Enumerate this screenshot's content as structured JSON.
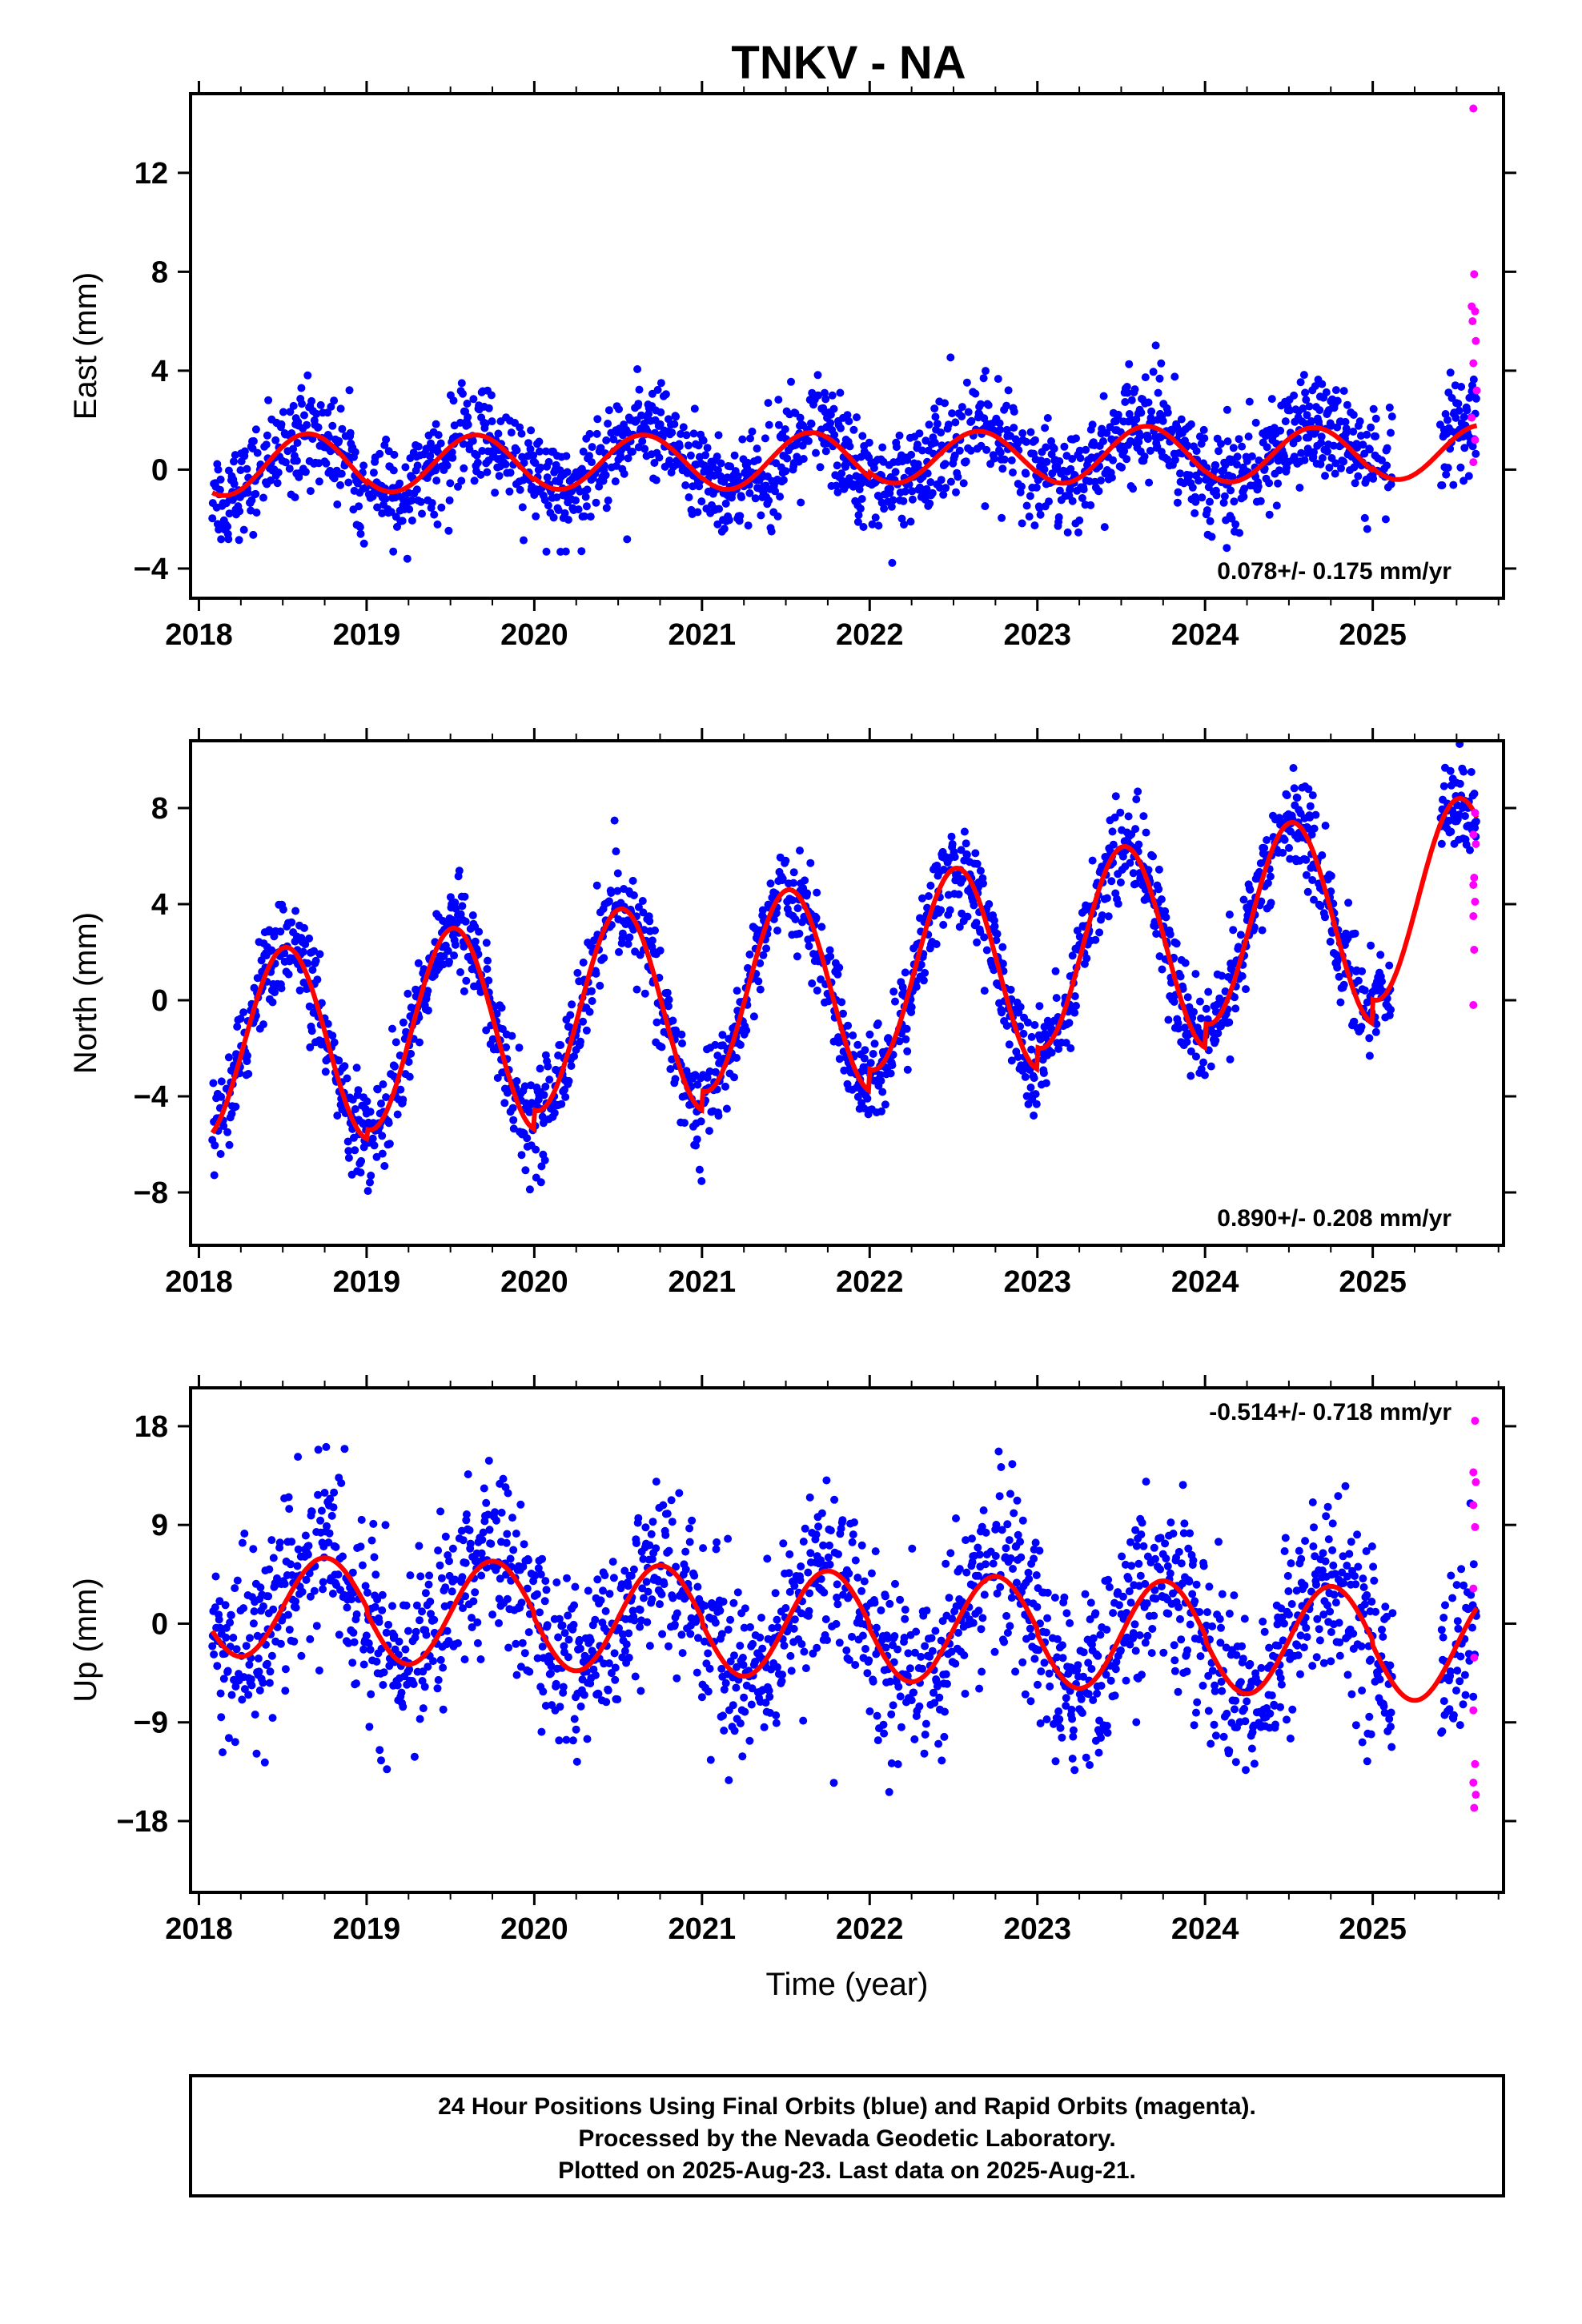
{
  "title": "TNKV - NA",
  "footer": {
    "lines": [
      "24 Hour Positions Using Final Orbits (blue) and Rapid Orbits (magenta).",
      "Processed by the Nevada Geodetic Laboratory.",
      "Plotted on 2025-Aug-23. Last data on 2025-Aug-21."
    ]
  },
  "colors": {
    "final": "#0000ff",
    "rapid": "#ff00ff",
    "model": "#ff0000",
    "axes": "#000000"
  },
  "chart_data": [
    {
      "type": "scatter",
      "ylabel": "East (mm)",
      "xlim": [
        2017.95,
        2025.78
      ],
      "ylim": [
        -5.2,
        15.2
      ],
      "yticks": [
        -4,
        0,
        4,
        8,
        12
      ],
      "xticks": [
        2018,
        2019,
        2020,
        2021,
        2022,
        2023,
        2024,
        2025
      ],
      "rate_text": "0.078+/- 0.175 mm/yr",
      "model": {
        "rate": 0.078,
        "offset": -0.2,
        "seasonal": [
          {
            "year": 2018,
            "amp": 1.25,
            "mean": 0.2
          },
          {
            "year": 2019,
            "amp": 1.15,
            "mean": 0.25
          },
          {
            "year": 2020,
            "amp": 1.1,
            "mean": 0.3
          },
          {
            "year": 2021,
            "amp": 1.15,
            "mean": 0.35
          },
          {
            "year": 2022,
            "amp": 1.05,
            "mean": 0.5
          },
          {
            "year": 2023,
            "amp": 1.15,
            "mean": 0.6
          },
          {
            "year": 2024,
            "amp": 1.1,
            "mean": 0.6
          },
          {
            "year": 2025,
            "amp": 1.1,
            "mean": 0.7
          }
        ],
        "peak_phase": 0.65,
        "noise": 1.0
      },
      "rapid_points": [
        {
          "x": 2025.6,
          "y": 14.6
        },
        {
          "x": 2025.605,
          "y": 7.9
        },
        {
          "x": 2025.59,
          "y": 6.6
        },
        {
          "x": 2025.61,
          "y": 6.4
        },
        {
          "x": 2025.595,
          "y": 6.0
        },
        {
          "x": 2025.615,
          "y": 5.2
        },
        {
          "x": 2025.6,
          "y": 4.3
        },
        {
          "x": 2025.62,
          "y": 3.2
        },
        {
          "x": 2025.59,
          "y": 2.1
        },
        {
          "x": 2025.61,
          "y": 1.2
        },
        {
          "x": 2025.6,
          "y": 0.3
        }
      ],
      "gaps": [
        [
          2025.12,
          2025.4
        ]
      ]
    },
    {
      "type": "scatter",
      "ylabel": "North (mm)",
      "xlim": [
        2017.95,
        2025.78
      ],
      "ylim": [
        -10.2,
        10.8
      ],
      "yticks": [
        -8,
        -4,
        0,
        4,
        8
      ],
      "xticks": [
        2018,
        2019,
        2020,
        2021,
        2022,
        2023,
        2024,
        2025
      ],
      "rate_text": "0.890+/- 0.208 mm/yr",
      "model": {
        "rate": 0.89,
        "offset": -1.7,
        "seasonal": [
          {
            "year": 2018,
            "amp": 4.0,
            "mean": -1.8
          },
          {
            "year": 2019,
            "amp": 4.2,
            "mean": -1.2
          },
          {
            "year": 2020,
            "amp": 4.2,
            "mean": -0.4
          },
          {
            "year": 2021,
            "amp": 4.2,
            "mean": 0.4
          },
          {
            "year": 2022,
            "amp": 4.2,
            "mean": 1.3
          },
          {
            "year": 2023,
            "amp": 4.2,
            "mean": 2.2
          },
          {
            "year": 2024,
            "amp": 4.2,
            "mean": 3.2
          },
          {
            "year": 2025,
            "amp": 4.2,
            "mean": 4.2
          }
        ],
        "peak_phase": 0.52,
        "noise": 1.0
      },
      "rapid_points": [
        {
          "x": 2025.61,
          "y": 7.8
        },
        {
          "x": 2025.6,
          "y": 6.9
        },
        {
          "x": 2025.615,
          "y": 6.5
        },
        {
          "x": 2025.605,
          "y": 5.1
        },
        {
          "x": 2025.6,
          "y": 4.8
        },
        {
          "x": 2025.61,
          "y": 4.1
        },
        {
          "x": 2025.6,
          "y": 3.5
        },
        {
          "x": 2025.605,
          "y": 2.1
        },
        {
          "x": 2025.6,
          "y": -0.2
        }
      ],
      "gaps": [
        [
          2025.12,
          2025.4
        ]
      ]
    },
    {
      "type": "scatter",
      "ylabel": "Up (mm)",
      "xlim": [
        2017.95,
        2025.78
      ],
      "ylim": [
        -24.5,
        21.5
      ],
      "yticks": [
        -18,
        -9,
        0,
        9,
        18
      ],
      "xticks": [
        2018,
        2019,
        2020,
        2021,
        2022,
        2023,
        2024,
        2025
      ],
      "xlabel": "Time (year)",
      "rate_text": "-0.514+/- 0.718 mm/yr",
      "model": {
        "rate": -0.514,
        "offset": 1.4,
        "seasonal": [
          {
            "year": 2018,
            "amp": 4.5,
            "mean": 1.5
          },
          {
            "year": 2019,
            "amp": 4.7,
            "mean": 1.0
          },
          {
            "year": 2020,
            "amp": 4.8,
            "mean": 0.5
          },
          {
            "year": 2021,
            "amp": 4.8,
            "mean": 0.0
          },
          {
            "year": 2022,
            "amp": 4.8,
            "mean": -0.5
          },
          {
            "year": 2023,
            "amp": 4.9,
            "mean": -1.0
          },
          {
            "year": 2024,
            "amp": 4.9,
            "mean": -1.5
          },
          {
            "year": 2025,
            "amp": 5.0,
            "mean": -2.0
          }
        ],
        "peak_phase": 0.75,
        "noise": 4.0
      },
      "rapid_points": [
        {
          "x": 2025.61,
          "y": 18.5
        },
        {
          "x": 2025.6,
          "y": 13.8
        },
        {
          "x": 2025.615,
          "y": 12.9
        },
        {
          "x": 2025.6,
          "y": 10.8
        },
        {
          "x": 2025.61,
          "y": 8.8
        },
        {
          "x": 2025.6,
          "y": 3.2
        },
        {
          "x": 2025.605,
          "y": -3.1
        },
        {
          "x": 2025.6,
          "y": -7.9
        },
        {
          "x": 2025.61,
          "y": -12.8
        },
        {
          "x": 2025.6,
          "y": -14.5
        },
        {
          "x": 2025.615,
          "y": -15.6
        },
        {
          "x": 2025.605,
          "y": -16.8
        }
      ],
      "gaps": [
        [
          2025.12,
          2025.4
        ]
      ]
    }
  ]
}
